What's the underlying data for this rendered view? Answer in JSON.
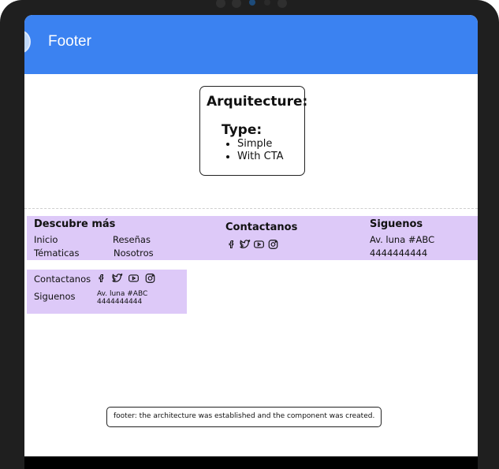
{
  "appbar": {
    "title": "Footer"
  },
  "architecture": {
    "title": "Arquitecture:",
    "type_label": "Type:",
    "types": [
      "Simple",
      "With CTA"
    ]
  },
  "footer_wide": {
    "col1": {
      "heading": "Descubre más",
      "links": [
        "Inicio",
        "Reseñas",
        "Tématicas",
        "Nosotros"
      ]
    },
    "col2": {
      "heading": "Contactanos",
      "icons": [
        "facebook-icon",
        "twitter-icon",
        "youtube-icon",
        "instagram-icon"
      ]
    },
    "col3": {
      "heading": "Siguenos",
      "address": "Av. luna #ABC",
      "phone": "4444444444"
    }
  },
  "footer_small": {
    "contact_label": "Contactanos",
    "follow_label": "Siguenos",
    "address": "Av. luna #ABC",
    "phone": "4444444444",
    "icons": [
      "facebook-icon",
      "twitter-icon",
      "youtube-icon",
      "instagram-icon"
    ]
  },
  "note": {
    "text": "footer: the architecture was established and the component was created."
  },
  "colors": {
    "appbar": "#3b82f1",
    "footer_bg": "#ddc9f8",
    "device": "#1f1f1f"
  }
}
